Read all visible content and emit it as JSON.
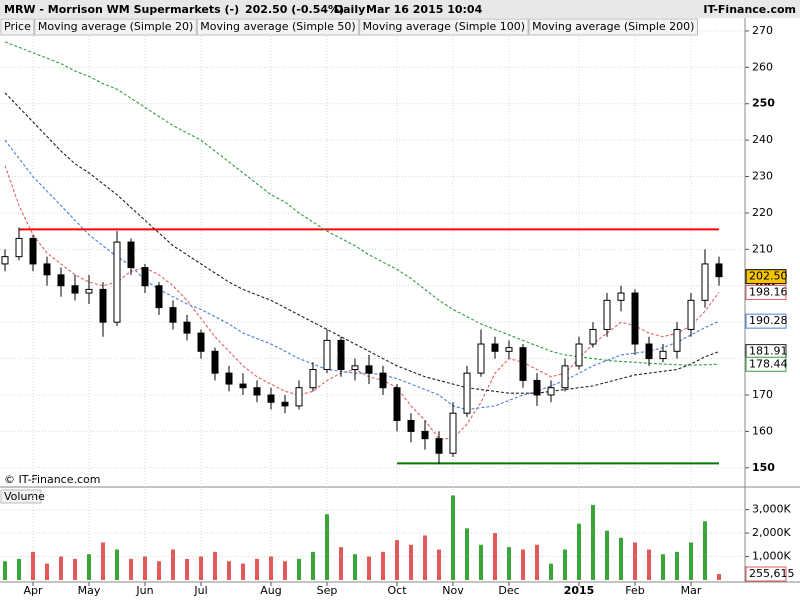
{
  "chart_data": {
    "type": "candlestick",
    "title": "MRW - Morrison WM Supermarkets (-)",
    "quote": "202.50 (-0.54%)",
    "period": "Daily",
    "timestamp": "Mar 16 2015 10:04",
    "source": "IT-Finance.com",
    "copyright": "© IT-Finance.com",
    "categories": [
      null,
      null,
      "Apr",
      null,
      null,
      null,
      "May",
      null,
      null,
      null,
      "Jun",
      null,
      null,
      null,
      "Jul",
      null,
      null,
      null,
      null,
      "Aug",
      null,
      null,
      null,
      "Sep",
      null,
      null,
      null,
      null,
      "Oct",
      null,
      null,
      null,
      "Nov",
      null,
      null,
      null,
      "Dec",
      null,
      null,
      null,
      null,
      "2015",
      null,
      null,
      null,
      "Feb",
      null,
      null,
      null,
      "Mar",
      null,
      null
    ],
    "ylim": [
      145,
      273
    ],
    "yticks": [
      150,
      160,
      170,
      180,
      190,
      200,
      210,
      220,
      230,
      240,
      250,
      260,
      270
    ],
    "grid": true,
    "series": [
      {
        "name": "Price",
        "color": "#000000",
        "last_label": "202.50",
        "label_color": "#f5c400",
        "open": [
          206,
          208,
          213,
          206,
          203,
          200,
          198,
          199,
          190,
          212,
          205,
          200,
          194,
          190,
          187,
          182,
          176,
          173,
          172,
          170,
          168,
          167,
          172,
          177,
          185,
          177,
          178,
          176,
          172,
          163,
          160,
          158,
          154,
          165,
          176,
          184,
          182,
          183,
          174,
          170,
          172,
          178,
          184,
          188,
          196,
          198,
          184,
          180,
          182,
          188,
          196,
          206
        ],
        "high": [
          210,
          216,
          214,
          208,
          205,
          203,
          203,
          201,
          215,
          213,
          206,
          201,
          196,
          192,
          188,
          183,
          178,
          176,
          174,
          172,
          170,
          174,
          179,
          188,
          186,
          180,
          181,
          178,
          173,
          165,
          163,
          160,
          168,
          178,
          188,
          186,
          185,
          184,
          176,
          174,
          180,
          186,
          190,
          198,
          200,
          199,
          186,
          184,
          190,
          198,
          210,
          208
        ],
        "low": [
          204,
          207,
          204,
          200,
          197,
          196,
          195,
          186,
          189,
          203,
          198,
          192,
          188,
          185,
          180,
          174,
          171,
          170,
          168,
          166,
          165,
          166,
          171,
          176,
          175,
          174,
          173,
          170,
          160,
          157,
          155,
          151,
          153,
          164,
          175,
          180,
          180,
          172,
          167,
          168,
          171,
          177,
          183,
          186,
          193,
          181,
          178,
          179,
          180,
          186,
          194,
          200
        ],
        "close": [
          208,
          213,
          206,
          203,
          200,
          198,
          199,
          190,
          212,
          205,
          200,
          194,
          190,
          187,
          182,
          176,
          173,
          172,
          170,
          168,
          167,
          172,
          177,
          185,
          177,
          178,
          176,
          172,
          163,
          160,
          158,
          154,
          165,
          176,
          184,
          182,
          183,
          174,
          170,
          172,
          178,
          184,
          188,
          196,
          198,
          184,
          180,
          182,
          188,
          196,
          206,
          202.5
        ]
      }
    ],
    "overlays": [
      {
        "name": "Moving average (Simple 20)",
        "color": "#e06060",
        "last_label": "198.16",
        "values": [
          233,
          222,
          214,
          209,
          206,
          203,
          201,
          200,
          201,
          204,
          205,
          203,
          200,
          196,
          191,
          186,
          182,
          178,
          175,
          173,
          171,
          170,
          171,
          174,
          176,
          177,
          175,
          174,
          172,
          167,
          163,
          158,
          158,
          162,
          168,
          176,
          180,
          179,
          177,
          175,
          176,
          180,
          184,
          187,
          190,
          189,
          187,
          186,
          187,
          189,
          193,
          198.16
        ]
      },
      {
        "name": "Moving average (Simple 50)",
        "color": "#4a7fd6",
        "last_label": "190.28",
        "values": [
          240,
          235,
          230,
          226,
          222,
          218,
          214,
          211,
          208,
          205.5,
          201.5,
          199,
          197,
          195,
          193.5,
          191.5,
          189.5,
          187,
          185.5,
          184,
          182,
          180,
          178.5,
          177,
          176.5,
          176,
          176,
          175.5,
          174.5,
          173,
          171.5,
          170,
          167,
          166,
          166.5,
          167,
          168.5,
          170,
          171,
          172.5,
          174,
          176,
          178,
          179.5,
          181,
          181.5,
          182,
          183,
          184.5,
          186.5,
          188.5,
          190.28
        ]
      },
      {
        "name": "Moving average (Simple 100)",
        "color": "#222222",
        "last_label": "181.91",
        "values": [
          253,
          249,
          245,
          241,
          237,
          233.5,
          231,
          228,
          225,
          221.5,
          218,
          214.5,
          211,
          208.5,
          206,
          203.5,
          201,
          199,
          197.5,
          196,
          194,
          192,
          190,
          188,
          186,
          184,
          182,
          180,
          178,
          176.5,
          175,
          174,
          173,
          172,
          171.5,
          171,
          170.5,
          170.5,
          170.5,
          171,
          171.5,
          172,
          172.5,
          173.5,
          174.5,
          175.5,
          176,
          176.5,
          177,
          178.5,
          180.5,
          181.91
        ]
      },
      {
        "name": "Moving average (Simple 200)",
        "color": "#2e9e3e",
        "last_label": "178.44",
        "values": [
          267,
          265.5,
          264,
          262.5,
          261,
          259,
          257.5,
          255.5,
          254,
          251.5,
          249,
          246.5,
          244,
          242,
          240,
          237,
          234,
          231,
          228,
          225,
          223,
          220,
          217.5,
          215,
          213,
          211,
          208.5,
          206.5,
          204.5,
          202,
          199,
          196,
          193.5,
          191.5,
          189.5,
          188,
          186.5,
          185,
          183.5,
          182,
          181,
          180.5,
          180,
          179.5,
          179.2,
          179,
          178.7,
          178.5,
          178.3,
          178.2,
          178.3,
          178.44
        ]
      }
    ],
    "levels": [
      {
        "value": 215.5,
        "color": "#ff0000",
        "from": 1,
        "to": 51
      },
      {
        "value": 151.2,
        "color": "#007a00",
        "from": 28,
        "to": 51
      }
    ],
    "volume": {
      "name": "Volume",
      "last_label": "255,615",
      "up_color": "#3aa63a",
      "down_color": "#e05a5a",
      "ylim": [
        0,
        3750000
      ],
      "yticks": [
        {
          "value": 1000000,
          "label": "1,000K"
        },
        {
          "value": 2000000,
          "label": "2,000K"
        },
        {
          "value": 3000000,
          "label": "3,000K"
        }
      ],
      "values": [
        800000,
        900000,
        1200000,
        700000,
        1000000,
        900000,
        1100000,
        1600000,
        1300000,
        900000,
        1000000,
        800000,
        1300000,
        900000,
        1000000,
        1200000,
        800000,
        700000,
        900000,
        1000000,
        800000,
        900000,
        1200000,
        2800000,
        1400000,
        1100000,
        1000000,
        1200000,
        1700000,
        1500000,
        1900000,
        1300000,
        3600000,
        2200000,
        1500000,
        2000000,
        1400000,
        1300000,
        1500000,
        700000,
        1300000,
        2400000,
        3200000,
        2100000,
        1800000,
        1600000,
        1300000,
        1100000,
        1200000,
        1600000,
        2500000,
        255615
      ]
    }
  }
}
